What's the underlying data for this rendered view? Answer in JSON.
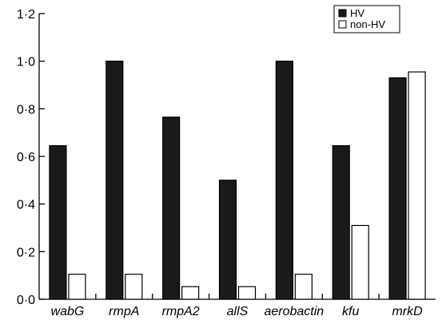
{
  "chart_data": {
    "type": "bar",
    "categories": [
      "wabG",
      "rmpA",
      "rmpA2",
      "allS",
      "aerobactin",
      "kfu",
      "mrkD"
    ],
    "series": [
      {
        "name": "HV",
        "values": [
          0.645,
          1.0,
          0.765,
          0.5,
          1.0,
          0.645,
          0.93
        ],
        "color": "#1a1a1a"
      },
      {
        "name": "non-HV",
        "values": [
          0.105,
          0.105,
          0.053,
          0.053,
          0.105,
          0.31,
          0.955
        ],
        "color": "#ffffff"
      }
    ],
    "title": "",
    "xlabel": "",
    "ylabel": "",
    "ylim": [
      0,
      1.2
    ],
    "yticks": [
      0,
      0.2,
      0.4,
      0.6,
      0.8,
      1.0,
      1.2
    ],
    "ytick_labels": [
      "0·0",
      "0·2",
      "0·4",
      "0·6",
      "0·8",
      "1·0",
      "1·2"
    ],
    "grid": false,
    "legend_position": "top-right"
  }
}
